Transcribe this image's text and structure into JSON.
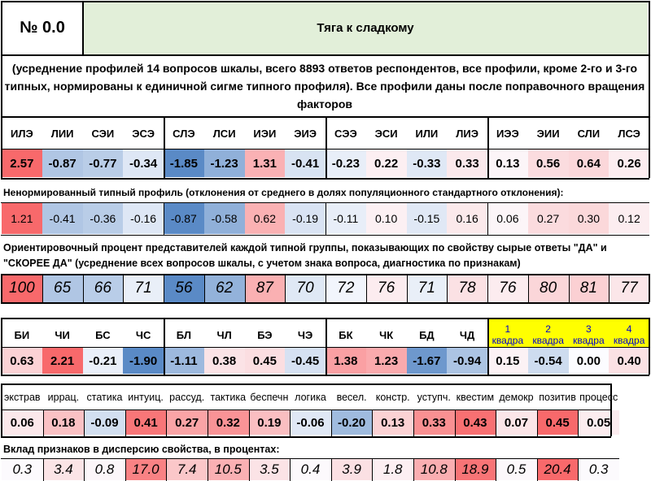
{
  "header": {
    "number": "№ 0.0",
    "title": "Тяга к сладкому",
    "title_bg": "#e2efd9"
  },
  "description": "(усреднение профилей 14 вопросов шкалы, всего 8893 ответов респондентов, все профили, кроме 2-го и 3-го типных, нормированы к единичной сигме типного профиля). Все профили даны после поправочного вращения факторов",
  "types": [
    "ИЛЭ",
    "ЛИИ",
    "СЭИ",
    "ЭСЭ",
    "СЛЭ",
    "ЛСИ",
    "ИЭИ",
    "ЭИЭ",
    "СЭЭ",
    "ЭСИ",
    "ИЛИ",
    "ЛИЭ",
    "ИЭЭ",
    "ЭИИ",
    "СЛИ",
    "ЛСЭ"
  ],
  "normalized": [
    "2.57",
    "-0.87",
    "-0.77",
    "-0.34",
    "-1.85",
    "-1.23",
    "1.31",
    "-0.41",
    "-0.23",
    "0.22",
    "-0.33",
    "0.33",
    "0.13",
    "0.56",
    "0.64",
    "0.26"
  ],
  "raw_caption": "Ненормированный типный профиль (отклонения от среднего  в долях популяционного стандартного отклонения):",
  "raw": [
    "1.21",
    "-0.41",
    "-0.36",
    "-0.16",
    "-0.87",
    "-0.58",
    "0.62",
    "-0.19",
    "-0.11",
    "0.10",
    "-0.15",
    "0.16",
    "0.06",
    "0.27",
    "0.30",
    "0.12"
  ],
  "percent_caption": "Ориентировочный процент представителей каждой типной группы, показывающих по свойству сырые ответы \"ДА\" и \"СКОРЕЕ ДА\" (усреднение всех вопросов шкалы, с учетом знака вопроса, диагностика по признакам)",
  "percent": [
    "100",
    "65",
    "66",
    "71",
    "56",
    "62",
    "87",
    "70",
    "72",
    "76",
    "71",
    "78",
    "76",
    "80",
    "81",
    "77"
  ],
  "groups": [
    "БИ",
    "ЧИ",
    "БС",
    "ЧС",
    "БЛ",
    "ЧЛ",
    "БЭ",
    "ЧЭ",
    "БК",
    "ЧК",
    "БД",
    "ЧД"
  ],
  "quadras": [
    {
      "n": "1",
      "label": "квадра"
    },
    {
      "n": "2",
      "label": "квадра"
    },
    {
      "n": "3",
      "label": "квадра"
    },
    {
      "n": "4",
      "label": "квадра"
    }
  ],
  "quadra_bg": "#ffff00",
  "group_values": [
    "0.63",
    "2.21",
    "-0.21",
    "-1.90",
    "-1.11",
    "0.38",
    "0.45",
    "-0.45",
    "1.38",
    "1.23",
    "-1.67",
    "-0.94",
    "0.15",
    "-0.54",
    "0.00",
    "0.40"
  ],
  "traits": [
    "экстрав",
    "иррац.",
    "статика",
    "интуиц.",
    "рассуд.",
    "тактика",
    "беспечн",
    "логика",
    "весел.",
    "констр.",
    "уступч.",
    "квестим",
    "демокр",
    "позитив",
    "процесс"
  ],
  "trait_values": [
    "0.06",
    "0.18",
    "-0.09",
    "0.41",
    "0.27",
    "0.32",
    "0.19",
    "-0.06",
    "-0.20",
    "0.13",
    "0.33",
    "0.43",
    "0.07",
    "0.45",
    "0.05"
  ],
  "contrib_caption": "Вклад признаков в дисперсию свойства, в процентах:",
  "contrib": [
    "0.3",
    "3.4",
    "0.8",
    "17.0",
    "7.4",
    "10.5",
    "3.5",
    "0.4",
    "3.9",
    "1.8",
    "10.8",
    "18.9",
    "0.5",
    "20.4",
    "0.3"
  ],
  "colors": {
    "pos_strong": "#f8696b",
    "neg_strong": "#5a8ac6",
    "neutral": "#fcfcff"
  }
}
